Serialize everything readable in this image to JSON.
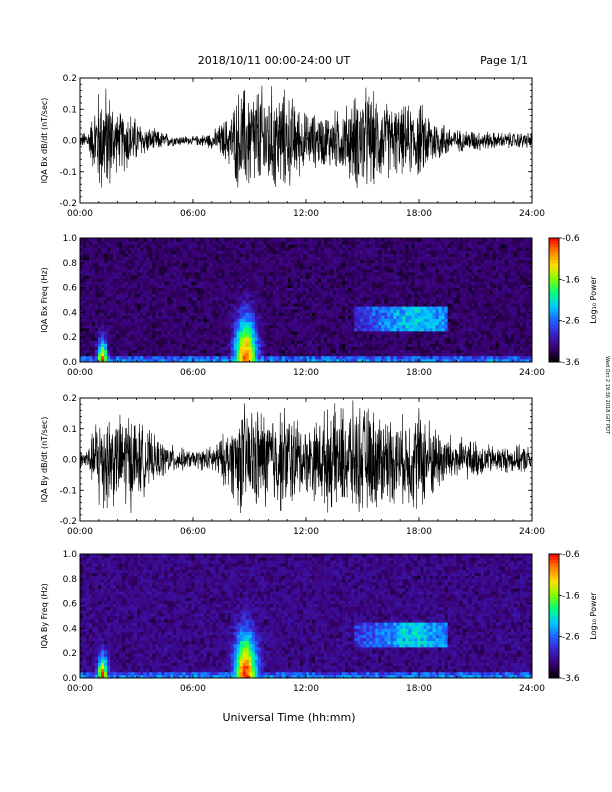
{
  "header": {
    "title": "2018/10/11   00:00-24:00 UT",
    "page": "Page 1/1"
  },
  "side_note": "Wed Oct 2 19:36 2018 GIT PDT",
  "xlabel": "Universal Time (hh:mm)",
  "chart_data": [
    {
      "type": "line",
      "ylabel": "IQA Bx dB/dt (nT/sec)",
      "ylim": [
        -0.2,
        0.2
      ],
      "yticks": [
        "0.2",
        "0.1",
        "0.0",
        "-0.1",
        "-0.2"
      ],
      "xticks": [
        "00:00",
        "06:00",
        "12:00",
        "18:00",
        "24:00"
      ],
      "xrange_hours": [
        0,
        24
      ],
      "envelope_hours": [
        0,
        0.5,
        1,
        1.5,
        2,
        2.5,
        3,
        3.5,
        4,
        5,
        6,
        7,
        8,
        8.5,
        9,
        10,
        11,
        12,
        13,
        14,
        15,
        16,
        17,
        18,
        19,
        20,
        21,
        22,
        23,
        24
      ],
      "envelope_amplitude": [
        0.02,
        0.05,
        0.2,
        0.2,
        0.1,
        0.12,
        0.08,
        0.05,
        0.04,
        0.02,
        0.015,
        0.03,
        0.1,
        0.2,
        0.2,
        0.2,
        0.18,
        0.1,
        0.1,
        0.12,
        0.2,
        0.15,
        0.12,
        0.14,
        0.08,
        0.04,
        0.04,
        0.03,
        0.03,
        0.03
      ]
    },
    {
      "type": "heatmap",
      "ylabel": "IQA Bx Freq (Hz)",
      "ylim": [
        0,
        1.0
      ],
      "yticks": [
        "1.0",
        "0.8",
        "0.6",
        "0.4",
        "0.2",
        "0.0"
      ],
      "xticks": [
        "00:00",
        "06:00",
        "12:00",
        "18:00",
        "24:00"
      ],
      "colorbar_label": "Log₁₀ Power",
      "colorbar_ticks": [
        "-0.6",
        "-1.6",
        "-2.6",
        "-3.6"
      ],
      "colorbar_range": [
        -3.6,
        -0.6
      ],
      "features": {
        "background_log_power": -3.4,
        "lowfreq_band_log_power": -2.4,
        "burst_hours": [
          1.2,
          8.8
        ],
        "burst_peak_freq_hz": [
          0.2,
          0.4
        ],
        "pc_band_hours": [
          14.5,
          19.5
        ],
        "pc_band_freq_hz": [
          0.25,
          0.45
        ]
      }
    },
    {
      "type": "line",
      "ylabel": "IQA By dB/dt (nT/sec)",
      "ylim": [
        -0.2,
        0.2
      ],
      "yticks": [
        "0.2",
        "0.1",
        "0.0",
        "-0.1",
        "-0.2"
      ],
      "xticks": [
        "00:00",
        "06:00",
        "12:00",
        "18:00",
        "24:00"
      ],
      "xrange_hours": [
        0,
        24
      ],
      "envelope_hours": [
        0,
        0.5,
        1,
        1.5,
        2,
        2.5,
        3,
        3.5,
        4,
        5,
        6,
        7,
        8,
        8.5,
        9,
        10,
        11,
        12,
        13,
        14,
        15,
        16,
        17,
        18,
        19,
        20,
        21,
        22,
        23,
        24
      ],
      "envelope_amplitude": [
        0.03,
        0.05,
        0.2,
        0.2,
        0.15,
        0.2,
        0.15,
        0.12,
        0.08,
        0.05,
        0.03,
        0.05,
        0.12,
        0.2,
        0.2,
        0.18,
        0.2,
        0.12,
        0.18,
        0.2,
        0.2,
        0.18,
        0.15,
        0.2,
        0.12,
        0.08,
        0.07,
        0.05,
        0.05,
        0.05
      ]
    },
    {
      "type": "heatmap",
      "ylabel": "IQA By Freq (Hz)",
      "ylim": [
        0,
        1.0
      ],
      "yticks": [
        "1.0",
        "0.8",
        "0.6",
        "0.4",
        "0.2",
        "0.0"
      ],
      "xticks": [
        "00:00",
        "06:00",
        "12:00",
        "18:00",
        "24:00"
      ],
      "colorbar_label": "Log₁₀ Power",
      "colorbar_ticks": [
        "-0.6",
        "-1.6",
        "-2.6",
        "-3.6"
      ],
      "colorbar_range": [
        -3.6,
        -0.6
      ],
      "features": {
        "background_log_power": -3.3,
        "lowfreq_band_log_power": -2.4,
        "burst_hours": [
          1.2,
          8.8
        ],
        "burst_peak_freq_hz": [
          0.2,
          0.4
        ],
        "pc_band_hours": [
          14.5,
          19.5
        ],
        "pc_band_freq_hz": [
          0.25,
          0.45
        ]
      }
    }
  ],
  "colors": {
    "trace": "#000000",
    "colormap": [
      "#000000",
      "#3a0070",
      "#3b20c8",
      "#2060ff",
      "#00c8ff",
      "#00ff80",
      "#80ff00",
      "#ffe000",
      "#ff8000",
      "#ff0000"
    ]
  }
}
